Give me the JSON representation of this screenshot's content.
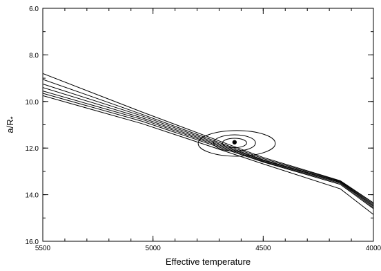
{
  "chart_data": {
    "type": "line",
    "xlabel": "Effective temperature",
    "ylabel": "a/R",
    "ylabel_subscript": "*",
    "xlim": [
      5500,
      4000
    ],
    "ylim": [
      16.0,
      6.0
    ],
    "x_ticks": [
      5500,
      5000,
      4500,
      4000
    ],
    "y_ticks": [
      6.0,
      8.0,
      10.0,
      12.0,
      14.0,
      16.0
    ],
    "x_tick_labels": [
      "5500",
      "5000",
      "4500",
      "4000"
    ],
    "y_tick_labels": [
      "6.0",
      "8.0",
      "10.0",
      "12.0",
      "14.0",
      "16.0"
    ],
    "grid": false,
    "legend": "none",
    "line_color": "#000000",
    "series": [
      {
        "x": [
          5500,
          5050,
          4500,
          4150,
          4000
        ],
        "y": [
          8.8,
          10.45,
          12.4,
          13.4,
          14.35
        ]
      },
      {
        "x": [
          5500,
          5050,
          4500,
          4150,
          4000
        ],
        "y": [
          9.05,
          10.55,
          12.45,
          13.42,
          14.4
        ]
      },
      {
        "x": [
          5500,
          5050,
          4500,
          4150,
          4000
        ],
        "y": [
          9.25,
          10.62,
          12.5,
          13.45,
          14.45
        ]
      },
      {
        "x": [
          5500,
          5050,
          4500,
          4150,
          4000
        ],
        "y": [
          9.4,
          10.7,
          12.53,
          13.48,
          14.5
        ]
      },
      {
        "x": [
          5500,
          5050,
          4500,
          4150,
          4000
        ],
        "y": [
          9.55,
          10.77,
          12.57,
          13.52,
          14.55
        ]
      },
      {
        "x": [
          5500,
          5050,
          4500,
          4150,
          4000
        ],
        "y": [
          9.65,
          10.85,
          12.6,
          13.56,
          14.6
        ]
      },
      {
        "x": [
          5500,
          5050,
          4500,
          4150,
          4000
        ],
        "y": [
          9.75,
          10.95,
          12.68,
          13.75,
          14.85
        ]
      }
    ],
    "point": {
      "x": 4630,
      "y": 11.75
    },
    "contours": [
      {
        "cx": 4630,
        "cy": 11.78,
        "rx": 55,
        "ry": 0.2
      },
      {
        "cx": 4630,
        "cy": 11.78,
        "rx": 95,
        "ry": 0.35
      },
      {
        "cx": 4620,
        "cy": 11.8,
        "rx": 175,
        "ry": 0.55
      }
    ]
  }
}
